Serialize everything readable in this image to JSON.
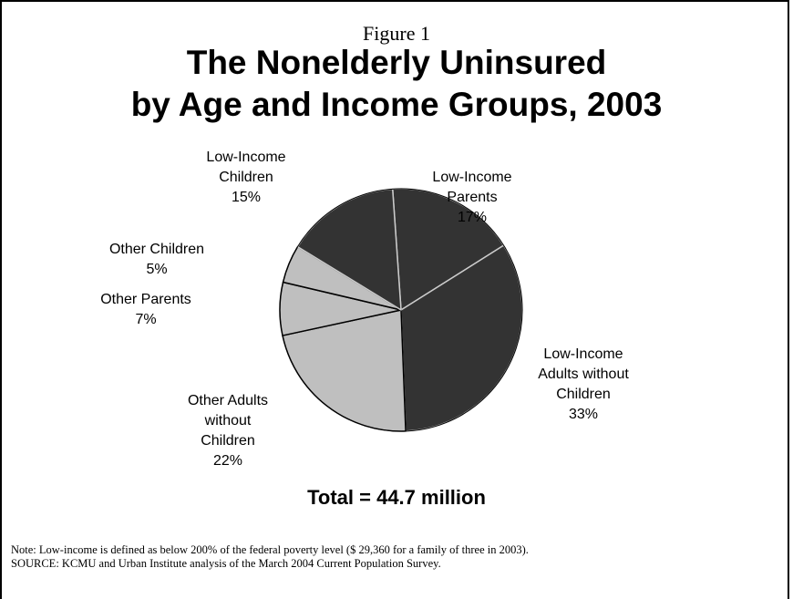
{
  "figure_label": "Figure 1",
  "title_line1": "The Nonelderly Uninsured",
  "title_line2": "by Age and Income Groups, 2003",
  "total": "Total = 44.7 million",
  "note": "Note: Low-income is defined as below 200% of the federal poverty level ($ 29,360 for a family of three in 2003).",
  "source": "SOURCE: KCMU and Urban Institute analysis of the March 2004 Current Population Survey.",
  "colors": {
    "dark": "#333333",
    "light": "#bfbfbf",
    "separator": "#000000",
    "separator_light": "#cccccc"
  },
  "chart_data": {
    "type": "pie",
    "title": "The Nonelderly Uninsured by Age and Income Groups, 2003",
    "slices": [
      {
        "label": "Low-Income\nParents\n17%",
        "value": 17,
        "color": "dark"
      },
      {
        "label": "Low-Income\nAdults without\nChildren\n33%",
        "value": 33,
        "color": "dark"
      },
      {
        "label": "Other Adults\nwithout\nChildren\n22%",
        "value": 22,
        "color": "light"
      },
      {
        "label": "Other Parents\n7%",
        "value": 7,
        "color": "light"
      },
      {
        "label": "Other Children\n5%",
        "value": 5,
        "color": "light"
      },
      {
        "label": "Low-Income\nChildren\n15%",
        "value": 15,
        "color": "dark"
      }
    ]
  }
}
